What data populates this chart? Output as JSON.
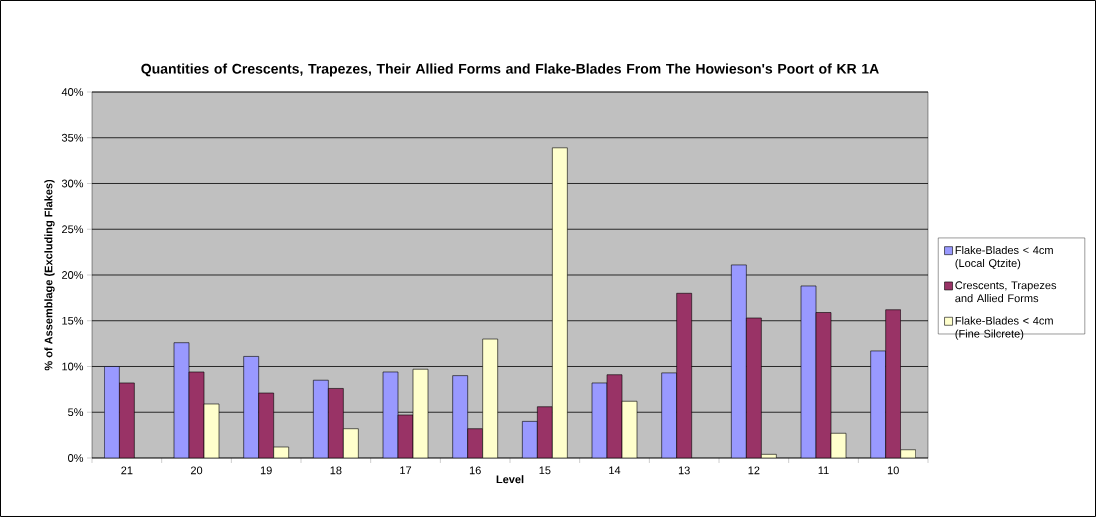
{
  "chart_data": {
    "type": "bar",
    "title": "Quantities of Crescents, Trapezes, Their Allied Forms and Flake-Blades From The Howieson's Poort of KR 1A",
    "xlabel": "Level",
    "ylabel": "% of Assemblage (Excluding Flakes)",
    "categories": [
      "21",
      "20",
      "19",
      "18",
      "17",
      "16",
      "15",
      "14",
      "13",
      "12",
      "11",
      "10"
    ],
    "series": [
      {
        "name": "Flake-Blades < 4cm (Local Qtzite)",
        "color": "#9999ff",
        "values": [
          10.0,
          12.6,
          11.1,
          8.5,
          9.4,
          9.0,
          4.0,
          8.2,
          9.3,
          21.1,
          18.8,
          11.7
        ]
      },
      {
        "name": "Crescents, Trapezes and Allied Forms",
        "color": "#993366",
        "values": [
          8.2,
          9.4,
          7.1,
          7.6,
          4.7,
          3.2,
          5.6,
          9.1,
          18.0,
          15.3,
          15.9,
          16.2
        ]
      },
      {
        "name": "Flake-Blades < 4cm (Fine Silcrete)",
        "color": "#ffffcc",
        "values": [
          null,
          5.9,
          1.2,
          3.2,
          9.7,
          13.0,
          33.9,
          6.2,
          null,
          0.4,
          2.7,
          0.9
        ]
      }
    ],
    "ylim": [
      0,
      40
    ],
    "yticks": [
      {
        "value": 0,
        "label": "0%"
      },
      {
        "value": 5,
        "label": "5%"
      },
      {
        "value": 10,
        "label": "10%"
      },
      {
        "value": 15,
        "label": "15%"
      },
      {
        "value": 20,
        "label": "20%"
      },
      {
        "value": 25,
        "label": "25%"
      },
      {
        "value": 30,
        "label": "30%"
      },
      {
        "value": 35,
        "label": "35%"
      },
      {
        "value": 40,
        "label": "40%"
      }
    ],
    "grid": "y",
    "legend": "right"
  }
}
